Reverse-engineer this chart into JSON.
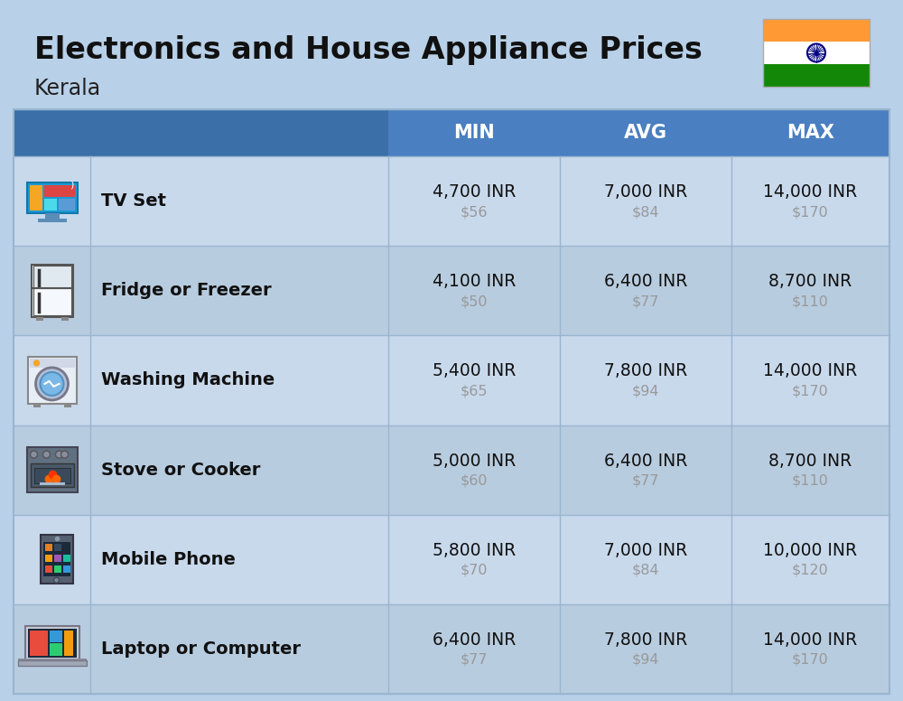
{
  "title_main": "Electronics and House Appliance Prices",
  "subtitle": "Kerala",
  "bg_color": "#b8d0e8",
  "header_color": "#4a7fc1",
  "header_icon_color": "#3a6fa8",
  "row_color_even": "#c8d9ec",
  "row_color_odd": "#b8ccdf",
  "header_text_color": "#ffffff",
  "item_text_color": "#111111",
  "usd_text_color": "#999999",
  "columns": [
    "MIN",
    "AVG",
    "MAX"
  ],
  "items": [
    {
      "name": "TV Set",
      "min_inr": "4,700 INR",
      "min_usd": "$56",
      "avg_inr": "7,000 INR",
      "avg_usd": "$84",
      "max_inr": "14,000 INR",
      "max_usd": "$170"
    },
    {
      "name": "Fridge or Freezer",
      "min_inr": "4,100 INR",
      "min_usd": "$50",
      "avg_inr": "6,400 INR",
      "avg_usd": "$77",
      "max_inr": "8,700 INR",
      "max_usd": "$110"
    },
    {
      "name": "Washing Machine",
      "min_inr": "5,400 INR",
      "min_usd": "$65",
      "avg_inr": "7,800 INR",
      "avg_usd": "$94",
      "max_inr": "14,000 INR",
      "max_usd": "$170"
    },
    {
      "name": "Stove or Cooker",
      "min_inr": "5,000 INR",
      "min_usd": "$60",
      "avg_inr": "6,400 INR",
      "avg_usd": "$77",
      "max_inr": "8,700 INR",
      "max_usd": "$110"
    },
    {
      "name": "Mobile Phone",
      "min_inr": "5,800 INR",
      "min_usd": "$70",
      "avg_inr": "7,000 INR",
      "avg_usd": "$84",
      "max_inr": "10,000 INR",
      "max_usd": "$120"
    },
    {
      "name": "Laptop or Computer",
      "min_inr": "6,400 INR",
      "min_usd": "$77",
      "avg_inr": "7,800 INR",
      "avg_usd": "$94",
      "max_inr": "14,000 INR",
      "max_usd": "$170"
    }
  ]
}
